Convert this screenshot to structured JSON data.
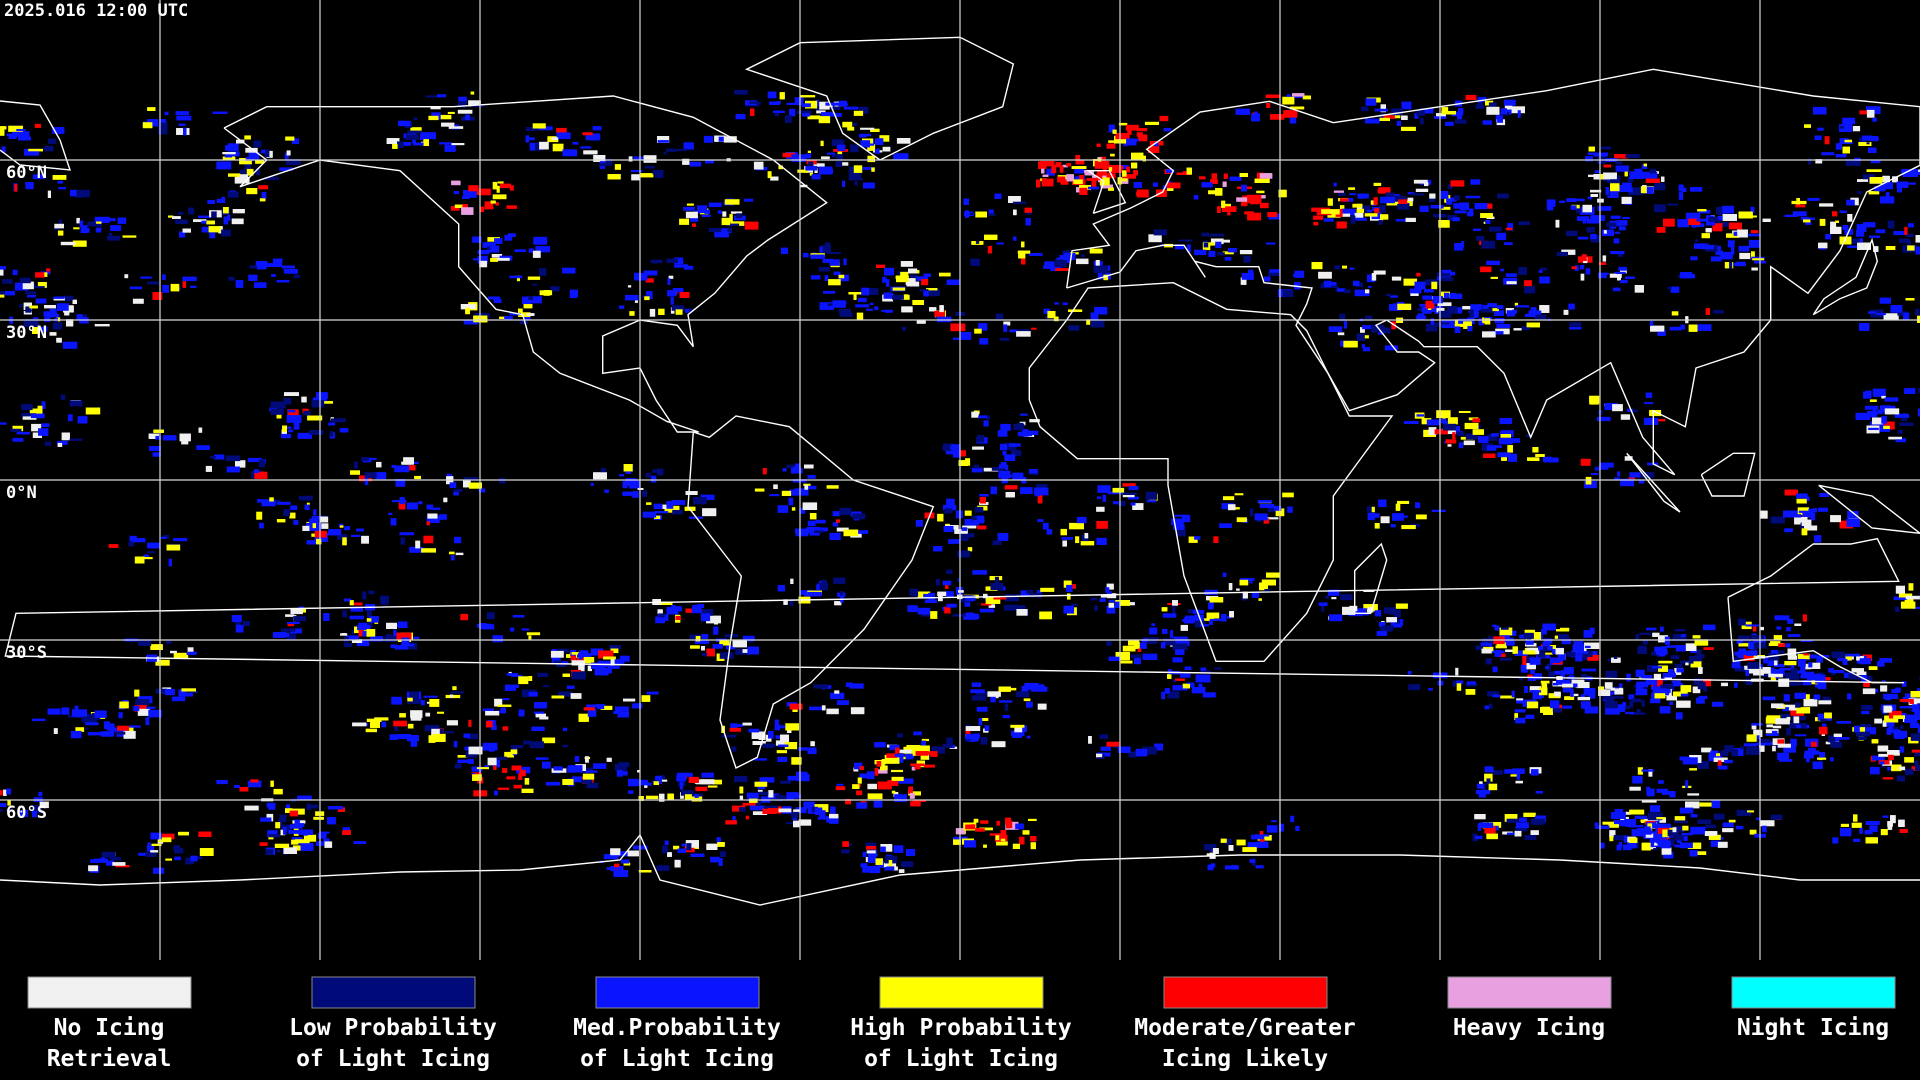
{
  "timestamp": "2025.016 12:00 UTC",
  "latitude_labels": [
    "60°N",
    "30°N",
    "0°N",
    "30°S",
    "60°S"
  ],
  "legend": [
    {
      "lines": [
        "No Icing",
        "Retrieval"
      ],
      "color": "#f0f0f0"
    },
    {
      "lines": [
        "Low Probability",
        "of Light Icing"
      ],
      "color": "#000a78"
    },
    {
      "lines": [
        "Med.Probability",
        "of Light Icing"
      ],
      "color": "#0a14ff"
    },
    {
      "lines": [
        "High Probability",
        "of Light Icing"
      ],
      "color": "#ffff00"
    },
    {
      "lines": [
        "Moderate/Greater",
        "Icing Likely"
      ],
      "color": "#ff0000"
    },
    {
      "lines": [
        "Heavy Icing"
      ],
      "color": "#e8a0e0"
    },
    {
      "lines": [
        "Night Icing"
      ],
      "color": "#00ffff"
    }
  ]
}
